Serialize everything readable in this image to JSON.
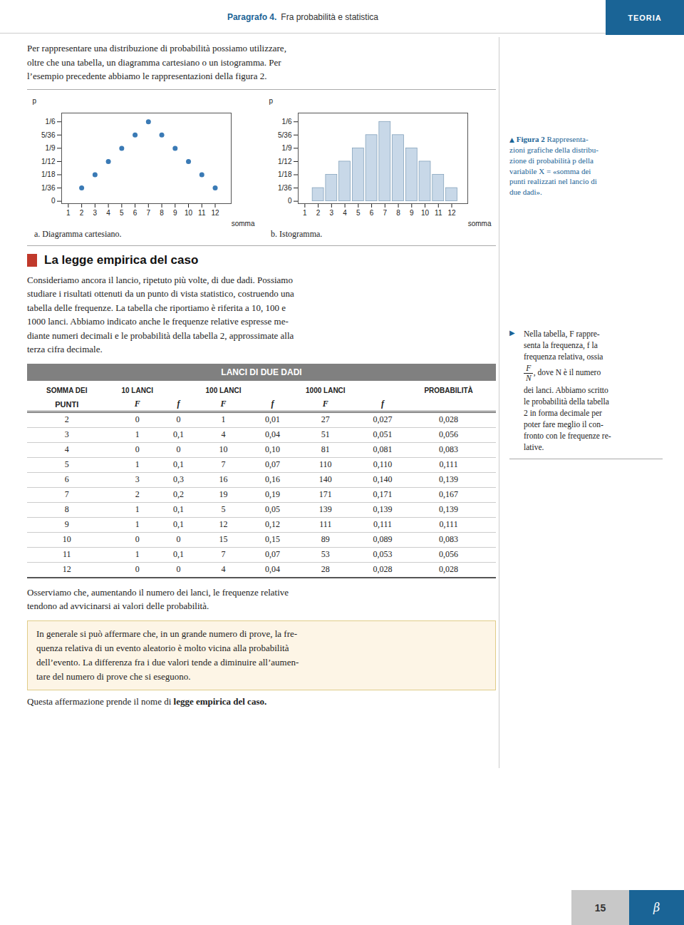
{
  "chart_data": [
    {
      "type": "scatter",
      "title": "a. Diagramma cartesiano.",
      "xlabel": "somma",
      "ylabel": "p",
      "x": [
        2,
        3,
        4,
        5,
        6,
        7,
        8,
        9,
        10,
        11,
        12
      ],
      "values": [
        0.027777777777777776,
        0.05555555555555555,
        0.08333333333333333,
        0.1111111111111111,
        0.1388888888888889,
        0.16666666666666666,
        0.1388888888888889,
        0.1111111111111111,
        0.08333333333333333,
        0.05555555555555555,
        0.027777777777777776
      ],
      "color": "#3a7ab5",
      "xlim": [
        0.5,
        13.2
      ],
      "ylim": [
        -0.005,
        0.185
      ],
      "xticks": [
        1,
        2,
        3,
        4,
        5,
        6,
        7,
        8,
        9,
        10,
        11,
        12
      ],
      "yticks": [
        0,
        {
          "value": 0.02778,
          "label": "1/36"
        },
        {
          "value": 0.05556,
          "label": "1/18"
        },
        {
          "value": 0.08333,
          "label": "1/12"
        },
        {
          "value": 0.11111,
          "label": "1/9"
        },
        {
          "value": 0.13889,
          "label": "5/36"
        },
        {
          "value": 0.16667,
          "label": "1/6"
        }
      ],
      "grid": false
    },
    {
      "type": "bar",
      "title": "b. Istogramma.",
      "xlabel": "somma",
      "ylabel": "p",
      "x": [
        2,
        3,
        4,
        5,
        6,
        7,
        8,
        9,
        10,
        11,
        12
      ],
      "values": [
        0.027777777777777776,
        0.05555555555555555,
        0.08333333333333333,
        0.1111111111111111,
        0.1388888888888889,
        0.16666666666666666,
        0.1388888888888889,
        0.1111111111111111,
        0.08333333333333333,
        0.05555555555555555,
        0.027777777777777776
      ],
      "color": "#c8d8e8",
      "xlim": [
        0.5,
        13.2
      ],
      "ylim": [
        -0.005,
        0.185
      ],
      "xticks": [
        1,
        2,
        3,
        4,
        5,
        6,
        7,
        8,
        9,
        10,
        11,
        12
      ],
      "yticks": [
        0,
        {
          "value": 0.02778,
          "label": "1/36"
        },
        {
          "value": 0.05556,
          "label": "1/18"
        },
        {
          "value": 0.08333,
          "label": "1/12"
        },
        {
          "value": 0.11111,
          "label": "1/9"
        },
        {
          "value": 0.13889,
          "label": "5/36"
        },
        {
          "value": 0.16667,
          "label": "1/6"
        }
      ],
      "grid": false
    }
  ],
  "page": {
    "header_text": "Paragrafo 4.",
    "header_text2": "Fra probabilità e statistica",
    "header_color": "#1a6496",
    "header_right": "TEORIA",
    "header_right_bg": "#1a6496",
    "intro_text": "Per rappresentare una distribuzione di probabilità possiamo utilizzare,\noltre che una tabella, un diagramma cartesiano o un istogramma. Per\nl’esempio precedente abbiamo le rappresentazioni della figura 2.",
    "section_title": "La legge empirica del caso",
    "section_square_color": "#c0392b",
    "body_text1": "Consideriamo ancora il lancio, ripetuto più volte, di due dadi. Possiamo\nstudiare i risultati ottenuti da un punto di vista statistico, costruendo una\ntabella delle frequenze. La tabella che riportiamo è riferita a 10, 100 e\n1000 lanci. Abbiamo indicato anche le frequenze relative espresse me-\ndiante numeri decimali e le probabilità della tabella 2, approssimate alla\nterza cifra decimale.",
    "table": {
      "title": "LANCI DI DUE DADI",
      "title_bg": "#808080",
      "title_fg": "#ffffff",
      "headers_row1": [
        "SOMMA DEI",
        "10 LANCI",
        null,
        "100 LANCI",
        null,
        "1000 LANCI",
        null,
        "PROBABILITÀ"
      ],
      "headers_row2": [
        "PUNTI",
        "F",
        "f",
        "F",
        "f",
        "F",
        "f",
        null
      ],
      "rows": [
        [
          2,
          0,
          "0",
          1,
          "0,01",
          27,
          "0,027",
          "0,028"
        ],
        [
          3,
          1,
          "0,1",
          4,
          "0,04",
          51,
          "0,051",
          "0,056"
        ],
        [
          4,
          0,
          "0",
          10,
          "0,10",
          81,
          "0,081",
          "0,083"
        ],
        [
          5,
          1,
          "0,1",
          7,
          "0,07",
          110,
          "0,110",
          "0,111"
        ],
        [
          6,
          3,
          "0,3",
          16,
          "0,16",
          140,
          "0,140",
          "0,139"
        ],
        [
          7,
          2,
          "0,2",
          19,
          "0,19",
          171,
          "0,171",
          "0,167"
        ],
        [
          8,
          1,
          "0,1",
          5,
          "0,05",
          139,
          "0,139",
          "0,139"
        ],
        [
          9,
          1,
          "0,1",
          12,
          "0,12",
          111,
          "0,111",
          "0,111"
        ],
        [
          10,
          0,
          "0",
          15,
          "0,15",
          89,
          "0,089",
          "0,083"
        ],
        [
          11,
          1,
          "0,1",
          7,
          "0,07",
          53,
          "0,053",
          "0,056"
        ],
        [
          12,
          0,
          "0",
          4,
          "0,04",
          28,
          "0,028",
          "0,028"
        ]
      ]
    },
    "footer_text1": "Osserviamo che, aumentando il numero dei lanci, le frequenze relative\ntendono ad avvicinarsi ai valori delle probabilità.",
    "box_text": "In generale si può affermare che, in un grande numero di prove, la fre-\nquenza relativa di un evento aleatorio è molto vicina alla probabilità\ndell’evento. La differenza fra i due valori tende a diminuire all’aumen-\ntare del numero di prove che si eseguono.",
    "box_bg": "#fdf5e6",
    "box_border": "#e0cc88",
    "final_text": "Questa affermazione prende il nome di ",
    "final_text_bold": "legge empirica del caso",
    "final_text_end": ".",
    "note1_triangle": "▲",
    "note1_label": "Figura 2",
    "note1_body": " Rappresenta-\nzioni grafiche della distribu-\nzione di probabilità p della\nvariabile X = «somma dei\npunti realizzati nel lancio di\ndue dadi».",
    "note1_color": "#1a6496",
    "note2_triangle": "▶",
    "note2_body": "Nella tabella, F rappre-\nsenta la frequenza, f la\nfrequenza relativa, ossia",
    "note2_fraction_numerator": "F",
    "note2_fraction_denominator": "N",
    "note2_fraction_text": ", dove N è il numero",
    "note2_rest": "dei lanci. Abbiamo scritto\nle probabilità della tabella\n2 in forma decimale per\npoter fare meglio il con-\nfronto con le frequenze re-\nlative.",
    "page_number": "15",
    "page_beta": "β"
  }
}
